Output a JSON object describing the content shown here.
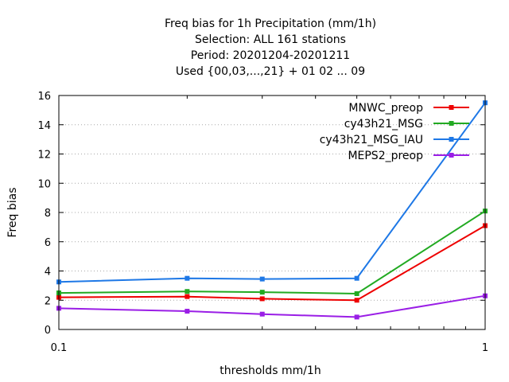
{
  "chart_data": {
    "type": "line",
    "title_lines": [
      "Freq bias  for 1h Precipitation (mm/1h)",
      "Selection: ALL    161 stations",
      "Period: 20201204-20201211",
      "Used {00,03,...,21} + 01 02 ... 09"
    ],
    "xlabel": "thresholds mm/1h",
    "ylabel": "Freq bias",
    "x_scale": "log",
    "xlim": [
      0.1,
      1
    ],
    "ylim": [
      0,
      16
    ],
    "x_ticks": [
      0.1,
      1
    ],
    "x_tick_labels": [
      "0.1",
      "1"
    ],
    "y_ticks": [
      0,
      2,
      4,
      6,
      8,
      10,
      12,
      14,
      16
    ],
    "y_tick_labels": [
      "0",
      "2",
      "4",
      "6",
      "8",
      "10",
      "12",
      "14",
      "16"
    ],
    "grid": true,
    "legend_position": "top-right",
    "x": [
      0.1,
      0.2,
      0.3,
      0.5,
      1
    ],
    "series": [
      {
        "name": "MNWC_preop",
        "color": "#ee0000",
        "values": [
          2.2,
          2.25,
          2.1,
          2.0,
          7.1
        ]
      },
      {
        "name": "cy43h21_MSG",
        "color": "#22aa22",
        "values": [
          2.5,
          2.6,
          2.55,
          2.45,
          8.1
        ]
      },
      {
        "name": "cy43h21_MSG_IAU",
        "color": "#1e78e6",
        "values": [
          3.25,
          3.5,
          3.45,
          3.5,
          15.5
        ]
      },
      {
        "name": "MEPS2_preop",
        "color": "#9a1ee6",
        "values": [
          1.45,
          1.25,
          1.05,
          0.85,
          2.3
        ]
      }
    ]
  }
}
